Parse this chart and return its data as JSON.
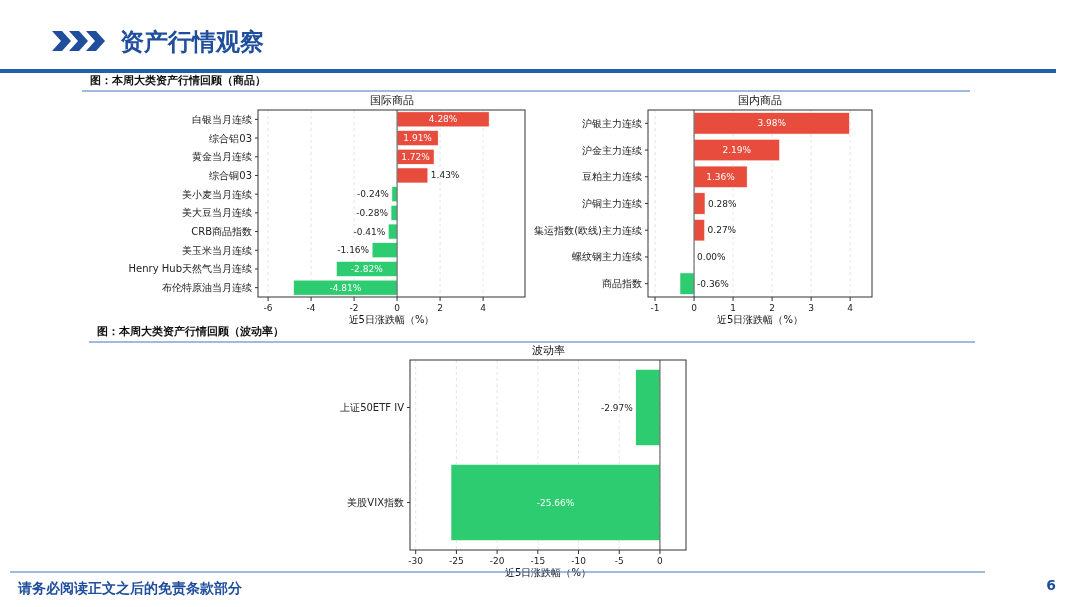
{
  "chart_data": [
    {
      "type": "bar",
      "orientation": "horizontal",
      "title": "国际商品",
      "subtitle": "图：本周大类资产行情回顾（商品）",
      "xlabel": "近5日涨跌幅（%）",
      "annotations": [
        "资产行情观察"
      ],
      "categories": [
        "白银当月连续",
        "综合铝03",
        "黄金当月连续",
        "综合铜03",
        "美小麦当月连续",
        "美大豆当月连续",
        "CRB商品指数",
        "美玉米当月连续",
        "Henry Hub天然气当月连续",
        "布伦特原油当月连续"
      ],
      "values": [
        4.28,
        1.91,
        1.72,
        1.43,
        -0.24,
        -0.28,
        -0.41,
        -1.16,
        -2.82,
        -4.81
      ],
      "colors": [
        "#e74c3c",
        "#e74c3c",
        "#e74c3c",
        "#e74c3c",
        "#2ecc71",
        "#2ecc71",
        "#2ecc71",
        "#2ecc71",
        "#2ecc71",
        "#2ecc71"
      ],
      "value_labels": [
        "4.28%",
        "1.91%",
        "1.72%",
        "1.43%",
        "-0.24%",
        "-0.28%",
        "-0.41%",
        "-1.16%",
        "-2.82%",
        "-4.81%"
      ],
      "xlim": [
        -6.47,
        5.95
      ],
      "xticks": [
        -6,
        -4,
        -2,
        0,
        2,
        4
      ],
      "grid": "x"
    },
    {
      "type": "bar",
      "orientation": "horizontal",
      "title": "国内商品",
      "xlabel": "近5日涨跌幅（%）",
      "categories": [
        "沪银主力连续",
        "沪金主力连续",
        "豆粕主力连续",
        "沪铜主力连续",
        "集运指数(欧线)主力连续",
        "螺纹钢主力连续",
        "商品指数"
      ],
      "values": [
        3.98,
        2.19,
        1.36,
        0.28,
        0.27,
        0.0,
        -0.36
      ],
      "colors": [
        "#e74c3c",
        "#e74c3c",
        "#e74c3c",
        "#e74c3c",
        "#e74c3c",
        "#e74c3c",
        "#2ecc71"
      ],
      "value_labels": [
        "3.98%",
        "2.19%",
        "1.36%",
        "0.28%",
        "0.27%",
        "0.00%",
        "-0.36%"
      ],
      "xlim": [
        -1.18,
        4.56
      ],
      "xticks": [
        -1,
        0,
        1,
        2,
        3,
        4
      ],
      "grid": "x"
    },
    {
      "type": "bar",
      "orientation": "horizontal",
      "title": "波动率",
      "subtitle": "图：本周大类资产行情回顾（波动率）",
      "xlabel": "近5日涨跌幅（%）",
      "annotations": [
        "请务必阅读正文之后的免责条款部分",
        "6"
      ],
      "categories": [
        "上证50ETF IV",
        "美股VIX指数"
      ],
      "values": [
        -2.97,
        -25.66
      ],
      "colors": [
        "#2ecc71",
        "#2ecc71"
      ],
      "value_labels": [
        "-2.97%",
        "-25.66%"
      ],
      "xlim": [
        -30.7,
        3.2
      ],
      "xticks": [
        -30,
        -25,
        -20,
        -15,
        -10,
        -5,
        0
      ],
      "grid": "x"
    }
  ]
}
